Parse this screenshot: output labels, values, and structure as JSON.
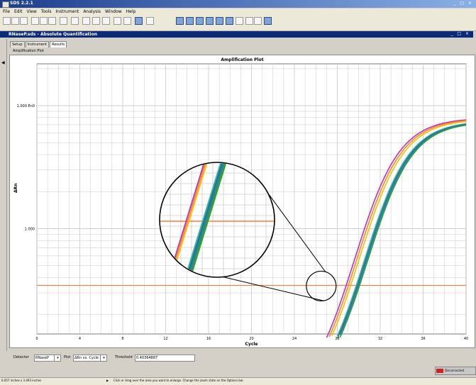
{
  "app": {
    "title": "SDS 2.2.1"
  },
  "menu": [
    "File",
    "Edit",
    "View",
    "Tools",
    "Instrument",
    "Analysis",
    "Window",
    "Help"
  ],
  "document": {
    "title": "RNaseP.sds - Absolute Quantification",
    "window_buttons": "_ □ ×"
  },
  "tabs": [
    "Setup",
    "Instrument",
    "Results"
  ],
  "subtab": "Amplification Plot",
  "plot": {
    "title": "Amplification Plot",
    "ylabel": "ΔRn",
    "xlabel": "Cycle",
    "y_ticks": [
      "1.000 En0",
      "1.000"
    ],
    "x_ticks": [
      "0",
      "4",
      "8",
      "12",
      "16",
      "20",
      "24",
      "28",
      "32",
      "36",
      "40"
    ]
  },
  "chart_data": {
    "type": "line",
    "title": "Amplification Plot",
    "xlabel": "Cycle",
    "ylabel": "ΔRn",
    "xlim": [
      0,
      40
    ],
    "grid": true,
    "threshold": 0.4036,
    "series_colors": [
      "#c32acb",
      "#ff8c00",
      "#e8c020",
      "#2fb3c0",
      "#1a8060",
      "#3a72c8",
      "#30a030"
    ],
    "curves_offset_cycles": [
      0,
      0.2,
      0.4,
      0.9,
      1.0,
      1.1,
      1.2
    ]
  },
  "controls": {
    "detector_label": "Detector",
    "detector_value": "RNaseP",
    "plot_label": "Plot",
    "plot_value": "ΔRn vs. Cycle",
    "threshold_label": "Threshold",
    "threshold_value": "0.40364887"
  },
  "status": {
    "size": "6.057 inches x 3.493 inches",
    "hint": "Click or drag over the area you want to enlarge. Change the zoom state on the Options bar.",
    "connection": "Disconnected"
  },
  "colors": {
    "threshold": "#ff7a3a",
    "grid": "#c8c8c8",
    "titlebar": "#1c3d8c"
  }
}
